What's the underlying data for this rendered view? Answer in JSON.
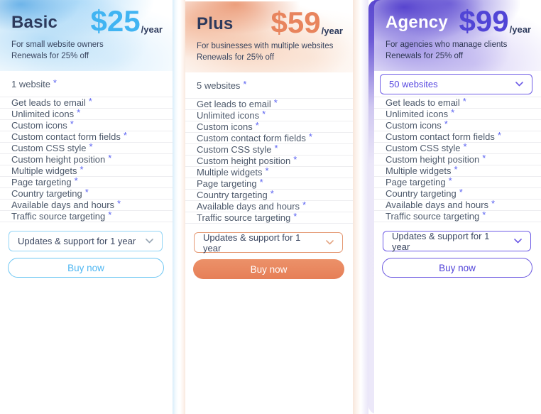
{
  "asterisk": "*",
  "features": [
    "Get leads to email",
    "Unlimited icons",
    "Custom icons",
    "Custom contact form fields",
    "Custom CSS style",
    "Custom height position",
    "Multiple widgets",
    "Page targeting",
    "Country targeting",
    "Available days and hours",
    "Traffic source targeting"
  ],
  "plans": [
    {
      "name": "Basic",
      "price": "$25",
      "period": "/year",
      "desc_line1": "For small website owners",
      "desc_line2": "Renewals for 25% off",
      "websites": "1 website",
      "support_dropdown": "Updates & support for 1 year",
      "buy_label": "Buy now",
      "accent_color": "#41b4f2",
      "button_style": "outline"
    },
    {
      "name": "Plus",
      "price": "$59",
      "period": "/year",
      "desc_line1": "For businesses with multiple websites",
      "desc_line2": "Renewals for 25% off",
      "websites": "5 websites",
      "support_dropdown": "Updates & support for 1 year",
      "buy_label": "Buy now",
      "accent_color": "#e8845d",
      "button_style": "filled"
    },
    {
      "name": "Agency",
      "price": "$99",
      "period": "/year",
      "desc_line1": "For agencies who manage clients",
      "desc_line2": "Renewals for 25% off",
      "websites": "50 websites",
      "websites_is_dropdown": true,
      "support_dropdown": "Updates & support for 1 year",
      "buy_label": "Buy now",
      "accent_color": "#5145d6",
      "button_style": "outline"
    }
  ]
}
